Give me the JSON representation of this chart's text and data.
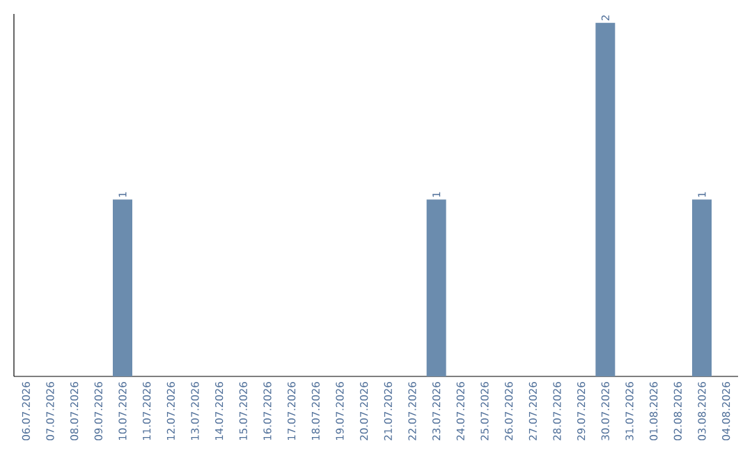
{
  "chart_data": {
    "type": "bar",
    "categories": [
      "06.07.2026",
      "07.07.2026",
      "08.07.2026",
      "09.07.2026",
      "10.07.2026",
      "11.07.2026",
      "12.07.2026",
      "13.07.2026",
      "14.07.2026",
      "15.07.2026",
      "16.07.2026",
      "17.07.2026",
      "18.07.2026",
      "19.07.2026",
      "20.07.2026",
      "21.07.2026",
      "22.07.2026",
      "23.07.2026",
      "24.07.2026",
      "25.07.2026",
      "26.07.2026",
      "27.07.2026",
      "28.07.2026",
      "29.07.2026",
      "30.07.2026",
      "31.07.2026",
      "01.08.2026",
      "02.08.2026",
      "03.08.2026",
      "04.08.2026"
    ],
    "values": [
      0,
      0,
      0,
      0,
      1,
      0,
      0,
      0,
      0,
      0,
      0,
      0,
      0,
      0,
      0,
      0,
      0,
      1,
      0,
      0,
      0,
      0,
      0,
      0,
      2,
      0,
      0,
      0,
      1,
      0
    ],
    "value_labels": [
      null,
      null,
      null,
      null,
      "1",
      null,
      null,
      null,
      null,
      null,
      null,
      null,
      null,
      null,
      null,
      null,
      null,
      "1",
      null,
      null,
      null,
      null,
      null,
      null,
      "2",
      null,
      null,
      null,
      "1",
      null
    ],
    "color": "#6b8cae",
    "ylim": [
      0,
      2.05
    ],
    "tick_labels": "x"
  }
}
